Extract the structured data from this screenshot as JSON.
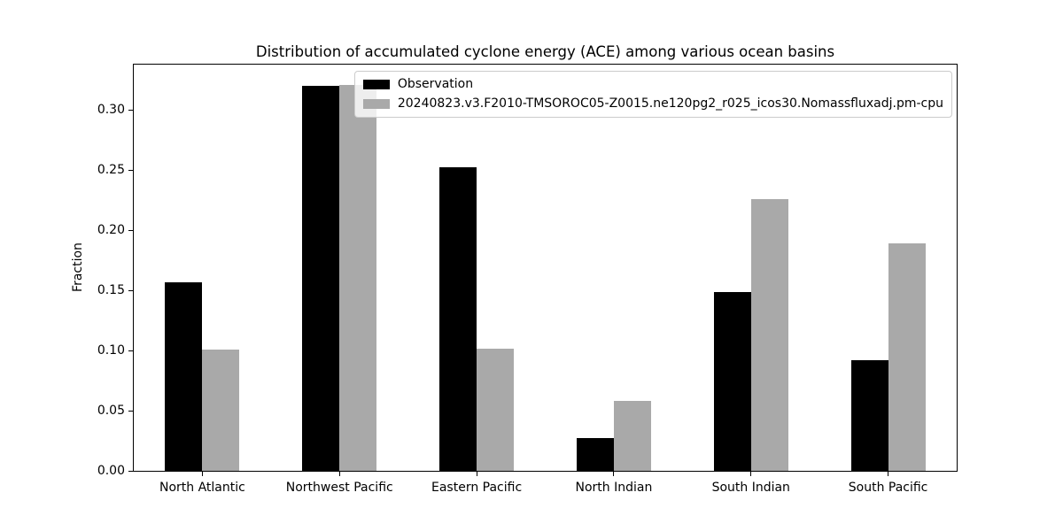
{
  "chart_data": {
    "type": "bar",
    "title": "Distribution of accumulated cyclone energy (ACE) among various ocean basins",
    "xlabel": "",
    "ylabel": "Fraction",
    "categories": [
      "North Atlantic",
      "Northwest Pacific",
      "Eastern Pacific",
      "North Indian",
      "South Indian",
      "South Pacific"
    ],
    "series": [
      {
        "name": "Observation",
        "color": "#000000",
        "values": [
          0.157,
          0.321,
          0.253,
          0.027,
          0.149,
          0.092
        ]
      },
      {
        "name": "20240823.v3.F2010-TMSOROC05-Z0015.ne120pg2_r025_icos30.Nomassfluxadj.pm-cpu",
        "color": "#a9a9a9",
        "values": [
          0.101,
          0.322,
          0.102,
          0.058,
          0.227,
          0.19
        ]
      }
    ],
    "ylim": [
      0,
      0.339
    ],
    "yticks": [
      0.0,
      0.05,
      0.1,
      0.15,
      0.2,
      0.25,
      0.3
    ],
    "ytick_labels": [
      "0.00",
      "0.05",
      "0.10",
      "0.15",
      "0.20",
      "0.25",
      "0.30"
    ],
    "grid": false,
    "legend_position": "upper right",
    "background_color": "#ffffff"
  }
}
